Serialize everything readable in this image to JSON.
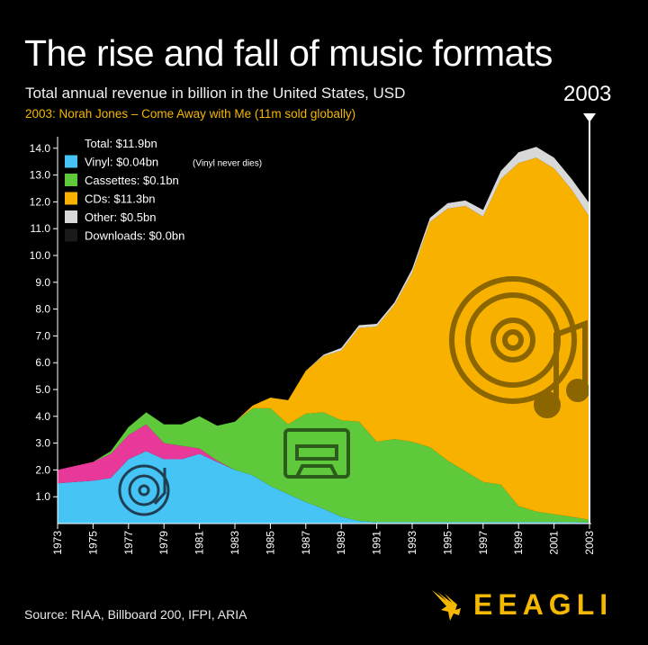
{
  "header": {
    "title": "The rise and fall of music formats",
    "subtitle": "Total annual revenue in billion in the United States, USD",
    "note": "2003: Norah Jones – Come Away with Me (11m sold globally)",
    "year_marker": "2003"
  },
  "footer": {
    "source": "Source: RIAA, Billboard 200, IFPI, ARIA",
    "logo_text": "EEAGLI"
  },
  "colors": {
    "background": "#000000",
    "vinyl": "#45c4f5",
    "eight_track": "#e8399a",
    "cassettes": "#5ec93b",
    "cds": "#f9b100",
    "other": "#d8d8d8",
    "note": "#f5b800"
  },
  "chart_data": {
    "type": "area",
    "stacked": true,
    "x": [
      1973,
      1974,
      1975,
      1976,
      1977,
      1978,
      1979,
      1980,
      1981,
      1982,
      1983,
      1984,
      1985,
      1986,
      1987,
      1988,
      1989,
      1990,
      1991,
      1992,
      1993,
      1994,
      1995,
      1996,
      1997,
      1998,
      1999,
      2000,
      2001,
      2002,
      2003
    ],
    "x_tick_labels": [
      "1973",
      "1975",
      "1977",
      "1979",
      "1981",
      "1983",
      "1985",
      "1987",
      "1989",
      "1991",
      "1993",
      "1995",
      "1997",
      "1999",
      "2001",
      "2003"
    ],
    "ylim": [
      0,
      14.5
    ],
    "y_tick_labels": [
      "1.0",
      "2.0",
      "3.0",
      "4.0",
      "5.0",
      "6.0",
      "7.0",
      "8.0",
      "9.0",
      "10.0",
      "11.0",
      "12.0",
      "13.0",
      "14.0"
    ],
    "series": [
      {
        "key": "vinyl",
        "values": [
          1.5,
          1.55,
          1.6,
          1.7,
          2.4,
          2.7,
          2.4,
          2.4,
          2.6,
          2.3,
          2.0,
          1.8,
          1.4,
          1.1,
          0.8,
          0.55,
          0.25,
          0.1,
          0.05,
          0.05,
          0.05,
          0.05,
          0.05,
          0.05,
          0.05,
          0.05,
          0.05,
          0.05,
          0.05,
          0.05,
          0.04
        ]
      },
      {
        "key": "eight_track",
        "values": [
          0.5,
          0.6,
          0.7,
          0.9,
          0.9,
          1.0,
          0.6,
          0.5,
          0.2,
          0.05,
          0,
          0,
          0,
          0,
          0,
          0,
          0,
          0,
          0,
          0,
          0,
          0,
          0,
          0,
          0,
          0,
          0,
          0,
          0,
          0,
          0
        ]
      },
      {
        "key": "cassettes",
        "values": [
          0,
          0,
          0,
          0.1,
          0.3,
          0.45,
          0.7,
          0.8,
          1.2,
          1.3,
          1.8,
          2.5,
          2.9,
          2.6,
          3.3,
          3.6,
          3.6,
          3.7,
          3.0,
          3.1,
          3.0,
          2.8,
          2.3,
          1.9,
          1.5,
          1.4,
          0.6,
          0.4,
          0.3,
          0.2,
          0.1
        ]
      },
      {
        "key": "cds",
        "values": [
          0,
          0,
          0,
          0,
          0,
          0,
          0,
          0,
          0,
          0,
          0,
          0.1,
          0.4,
          0.9,
          1.6,
          2.1,
          2.6,
          3.5,
          4.3,
          5.0,
          6.3,
          8.4,
          9.4,
          9.9,
          9.9,
          11.4,
          12.8,
          13.2,
          12.9,
          12.2,
          11.3
        ]
      },
      {
        "key": "other",
        "values": [
          0,
          0,
          0,
          0,
          0,
          0,
          0,
          0,
          0,
          0,
          0,
          0,
          0,
          0,
          0,
          0.05,
          0.1,
          0.1,
          0.1,
          0.1,
          0.15,
          0.15,
          0.2,
          0.2,
          0.25,
          0.3,
          0.4,
          0.4,
          0.4,
          0.4,
          0.5
        ]
      }
    ],
    "legend": [
      {
        "key": "total",
        "label": "Total: $11.9bn"
      },
      {
        "key": "vinyl",
        "label": "Vinyl: $0.04bn",
        "note": "(Vinyl never dies)"
      },
      {
        "key": "cassettes",
        "label": "Cassettes: $0.1bn"
      },
      {
        "key": "cds",
        "label": "CDs: $11.3bn"
      },
      {
        "key": "other",
        "label": "Other: $0.5bn"
      },
      {
        "key": "downloads",
        "label": "Downloads: $0.0bn"
      }
    ],
    "legend_position": "top-left",
    "grid": false
  }
}
